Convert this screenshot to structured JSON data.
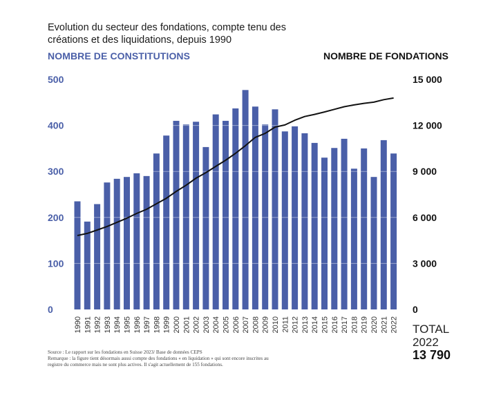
{
  "title_line1": "Evolution du secteur des fondations, compte tenu des",
  "title_line2": "créations et des liquidations, depuis 1990",
  "left_axis_label": "NOMBRE DE CONSTITUTIONS",
  "right_axis_label": "NOMBRE DE FONDATIONS",
  "total": {
    "label": "TOTAL",
    "year": "2022",
    "value": "13 790"
  },
  "footer": {
    "source": "Source : Le rapport sur les fondations en Suisse 2023/ Base de données CEPS",
    "remark_line1": "Remarque : la figure tient désormais aussi compte des fondations « en liquidation » qui sont encore inscrites au",
    "remark_line2": "registre du commerce mais ne sont plus actives. Il s'agit actuellement de 155 fondations."
  },
  "colors": {
    "bar": "#4a5fa8",
    "line": "#111111",
    "left_axis": "#4a5fa8"
  },
  "chart_data": {
    "type": "bar",
    "title": "Evolution du secteur des fondations, compte tenu des créations et des liquidations, depuis 1990",
    "categories": [
      "1990",
      "1991",
      "1992",
      "1993",
      "1994",
      "1995",
      "1996",
      "1997",
      "1998",
      "1999",
      "2000",
      "2001",
      "2002",
      "2003",
      "2004",
      "2005",
      "2006",
      "2007",
      "2008",
      "2009",
      "2010",
      "2011",
      "2012",
      "2013",
      "2014",
      "2015",
      "2016",
      "2017",
      "2018",
      "2019",
      "2020",
      "2021",
      "2022"
    ],
    "series": [
      {
        "name": "Nombre de constitutions",
        "type": "bar",
        "axis": "left",
        "values": [
          235,
          191,
          229,
          276,
          284,
          288,
          296,
          290,
          339,
          378,
          410,
          402,
          408,
          353,
          424,
          410,
          437,
          477,
          441,
          402,
          435,
          387,
          398,
          383,
          362,
          330,
          351,
          371,
          306,
          350,
          288,
          368,
          339
        ]
      },
      {
        "name": "Nombre de fondations",
        "type": "line",
        "axis": "right",
        "values": [
          4820,
          4960,
          5180,
          5410,
          5680,
          5950,
          6260,
          6530,
          6890,
          7250,
          7700,
          8100,
          8560,
          8920,
          9330,
          9730,
          10180,
          10680,
          11220,
          11480,
          11890,
          12030,
          12340,
          12580,
          12720,
          12880,
          13050,
          13220,
          13340,
          13440,
          13520,
          13680,
          13790
        ]
      }
    ],
    "left_axis": {
      "label": "NOMBRE DE CONSTITUTIONS",
      "range": [
        0,
        500
      ],
      "ticks": [
        "0",
        "100",
        "200",
        "300",
        "400",
        "500"
      ],
      "tick_values": [
        0,
        100,
        200,
        300,
        400,
        500
      ]
    },
    "right_axis": {
      "label": "NOMBRE DE FONDATIONS",
      "range": [
        0,
        15000
      ],
      "ticks": [
        "0",
        "3 000",
        "6 000",
        "9 000",
        "12 000",
        "15 000"
      ],
      "tick_values": [
        0,
        3000,
        6000,
        9000,
        12000,
        15000
      ]
    },
    "grid": "horizontal (visible only over bars)",
    "legend": "none"
  }
}
